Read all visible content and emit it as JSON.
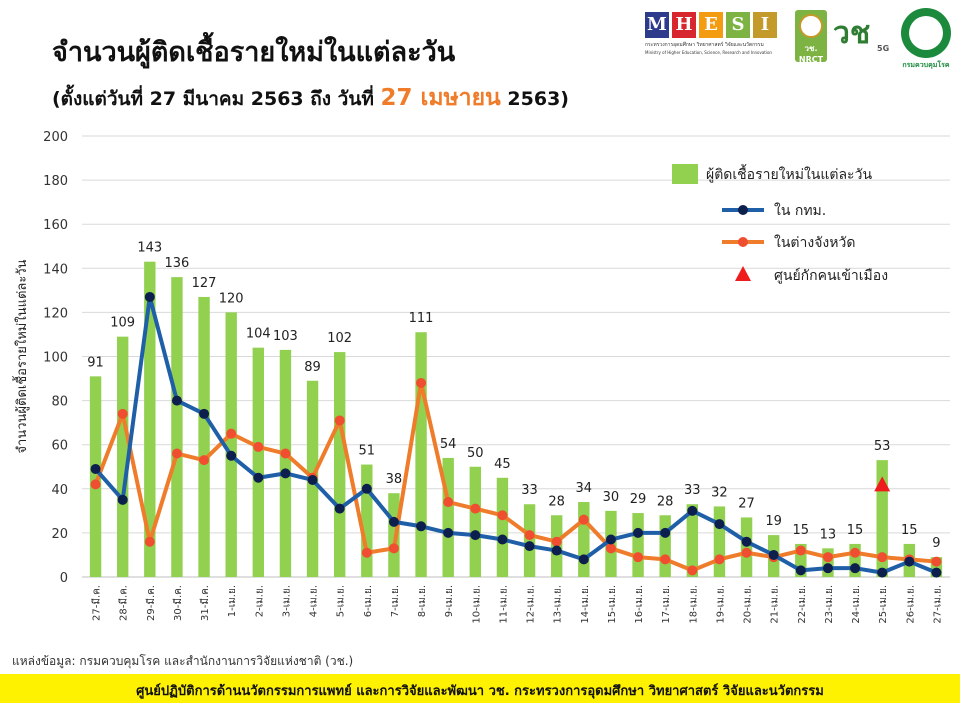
{
  "header": {
    "title": "จำนวนผู้ติดเชื้อรายใหม่ในแต่ละวัน",
    "subtitle_prefix": "(ตั้งแต่วันที่ 27 มีนาคม 2563 ถึง วันที่",
    "subtitle_highlight": "27 เมษายน",
    "subtitle_suffix": "2563)"
  },
  "logos": {
    "mhesi": [
      "M",
      "H",
      "E",
      "S",
      "I"
    ],
    "mhesi_colors": [
      "#2e3a8c",
      "#d8262e",
      "#f39c12",
      "#7cb342",
      "#c49a2b"
    ],
    "mhesi_caption": "กระทรวงการอุดมศึกษา วิทยาศาสตร์ วิจัยและนวัตกรรม",
    "mhesi_caption_en": "Ministry of Higher Education, Science, Research and Innovation",
    "nrct_label": "วช. NRCT",
    "v5g_mark": "วช",
    "v5g_sup": "5G",
    "ddc_label": "กรมควบคุมโรค"
  },
  "chart_data": {
    "type": "bar",
    "ylabel": "จำนวนผู้ติดเชื้อรายใหม่ในแต่ละวัน",
    "ylim": [
      0,
      200
    ],
    "yticks": [
      0,
      20,
      40,
      60,
      80,
      100,
      120,
      140,
      160,
      180,
      200
    ],
    "grid": true,
    "legend_position": "top-right",
    "categories": [
      "27-มี.ค.",
      "28-มี.ค.",
      "29-มี.ค.",
      "30-มี.ค.",
      "31-มี.ค.",
      "1-เม.ย.",
      "2-เม.ย.",
      "3-เม.ย.",
      "4-เม.ย.",
      "5-เม.ย.",
      "6-เม.ย.",
      "7-เม.ย.",
      "8-เม.ย.",
      "9-เม.ย.",
      "10-เม.ย.",
      "11-เม.ย.",
      "12-เม.ย.",
      "13-เม.ย.",
      "14-เม.ย.",
      "15-เม.ย.",
      "16-เม.ย.",
      "17-เม.ย.",
      "18-เม.ย.",
      "19-เม.ย.",
      "20-เม.ย.",
      "21-เม.ย.",
      "22-เม.ย.",
      "23-เม.ย.",
      "24-เม.ย.",
      "25-เม.ย.",
      "26-เม.ย.",
      "27-เม.ย."
    ],
    "series": [
      {
        "name": "ผู้ติดเชื้อรายใหม่ในแต่ละวัน",
        "type": "bar",
        "color": "#92d050",
        "values": [
          91,
          109,
          143,
          136,
          127,
          120,
          104,
          103,
          89,
          102,
          51,
          38,
          111,
          54,
          50,
          45,
          33,
          28,
          34,
          30,
          29,
          28,
          33,
          32,
          27,
          19,
          15,
          13,
          15,
          53,
          15,
          9
        ]
      },
      {
        "name": "ใน กทม.",
        "type": "line",
        "color": "#1f5fa8",
        "marker_color": "#0d1f4d",
        "values": [
          49,
          35,
          127,
          80,
          74,
          55,
          45,
          47,
          44,
          31,
          40,
          25,
          23,
          20,
          19,
          17,
          14,
          12,
          8,
          17,
          20,
          20,
          30,
          24,
          16,
          10,
          3,
          4,
          4,
          2,
          7,
          2
        ]
      },
      {
        "name": "ในต่างจังหวัด",
        "type": "line",
        "color": "#ef7c2a",
        "marker_color": "#f04e30",
        "values": [
          42,
          74,
          16,
          56,
          53,
          65,
          59,
          56,
          45,
          71,
          11,
          13,
          88,
          34,
          31,
          28,
          19,
          16,
          26,
          13,
          9,
          8,
          3,
          8,
          11,
          9,
          12,
          9,
          11,
          9,
          8,
          7
        ]
      },
      {
        "name": "ศูนย์กักคนเข้าเมือง",
        "type": "marker",
        "color": "#ee1c1c",
        "points": [
          {
            "category": "25-เม.ย.",
            "value": 42
          }
        ]
      }
    ]
  },
  "source": "แหล่งข้อมูล: กรมควบคุมโรค และสำนักงานการวิจัยแห่งชาติ (วช.)",
  "footer": "ศูนย์ปฏิบัติการด้านนวัตกรรมการแพทย์ และการวิจัยและพัฒนา  วช.   กระทรวงการอุดมศึกษา วิทยาศาสตร์ วิจัยและนวัตกรรม"
}
